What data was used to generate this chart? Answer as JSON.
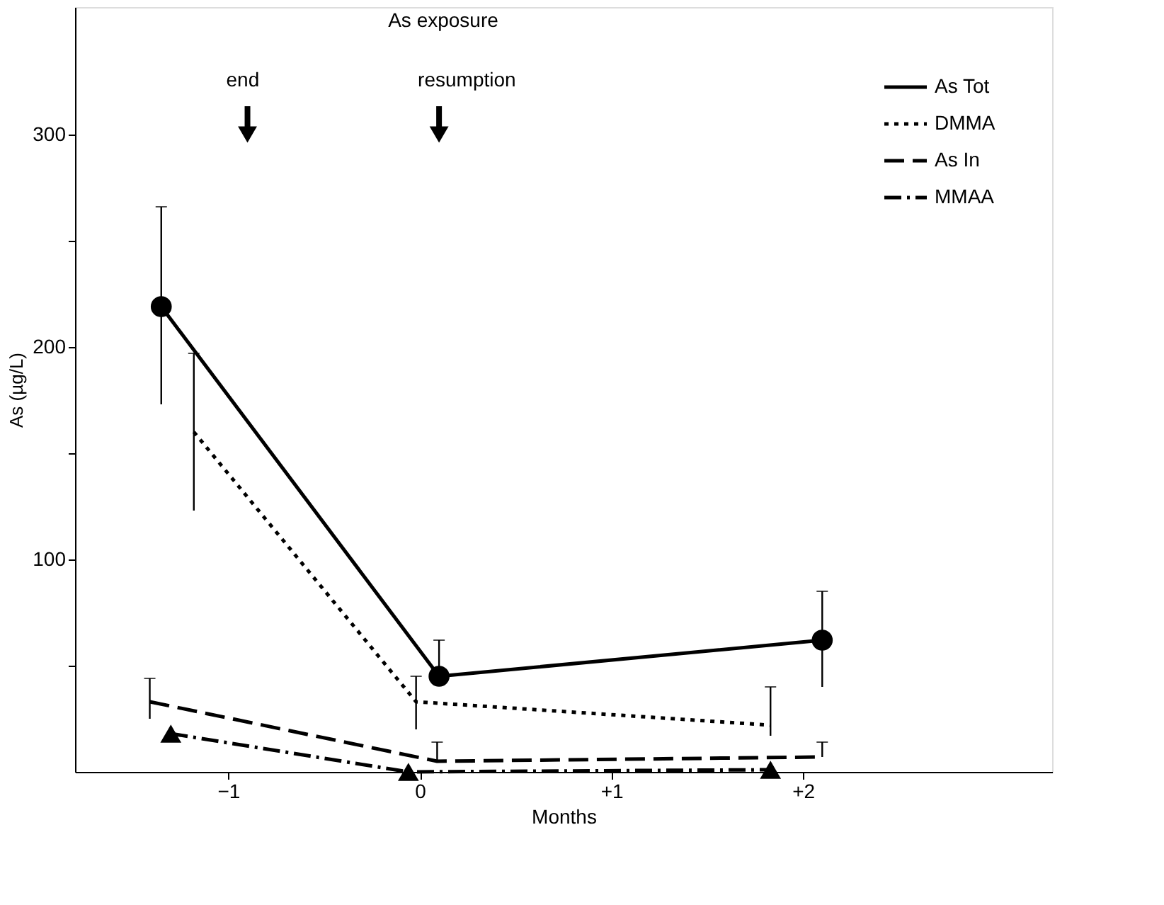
{
  "chart_data": {
    "type": "line",
    "xlabel": "Months",
    "ylabel": "As (µg/L)",
    "annotations": [
      "As exposure",
      {
        "text": "end",
        "x": -0.9,
        "y": 300
      },
      {
        "text": "resumption",
        "x": 0.1,
        "y": 300
      }
    ],
    "series": [
      {
        "name": "As Tot",
        "color": "#000000",
        "marker": "circle",
        "line_style": "solid",
        "x": [
          -1.35,
          0.1,
          2.1
        ],
        "values": [
          219,
          45,
          62
        ],
        "errors": [
          [
            173,
            266
          ],
          [
            45,
            62
          ],
          [
            40,
            85
          ]
        ]
      },
      {
        "name": "DMMA",
        "color": "#000000",
        "marker": "none",
        "line_style": "dotted",
        "x": [
          -1.18,
          -0.02,
          1.83
        ],
        "values": [
          160,
          33,
          22
        ],
        "errors": [
          [
            123,
            197
          ],
          [
            20,
            45
          ],
          [
            17,
            40
          ]
        ]
      },
      {
        "name": "As In",
        "color": "#000000",
        "marker": "none",
        "line_style": "dashed",
        "x": [
          -1.41,
          0.09,
          2.1
        ],
        "values": [
          33,
          5,
          7
        ],
        "errors": [
          [
            25,
            44
          ],
          [
            5,
            14
          ],
          [
            7,
            14
          ]
        ]
      },
      {
        "name": "MMAA",
        "color": "#000000",
        "marker": "triangle",
        "line_style": "dashdot",
        "x": [
          -1.3,
          -0.06,
          1.83
        ],
        "values": [
          18,
          0,
          1
        ]
      }
    ],
    "xlim": [
      -1.8,
      3.3
    ],
    "ylim": [
      0,
      360
    ],
    "xticks": [
      {
        "value": -1,
        "label": "−1"
      },
      0,
      {
        "value": 1,
        "label": "+1"
      },
      {
        "value": 2,
        "label": "+2"
      }
    ],
    "yticks": [
      {
        "value": 50,
        "label": null
      },
      100,
      {
        "value": 150,
        "label": null
      },
      200,
      {
        "value": 250,
        "label": null
      },
      300
    ],
    "grid": false,
    "legend": "top right"
  }
}
